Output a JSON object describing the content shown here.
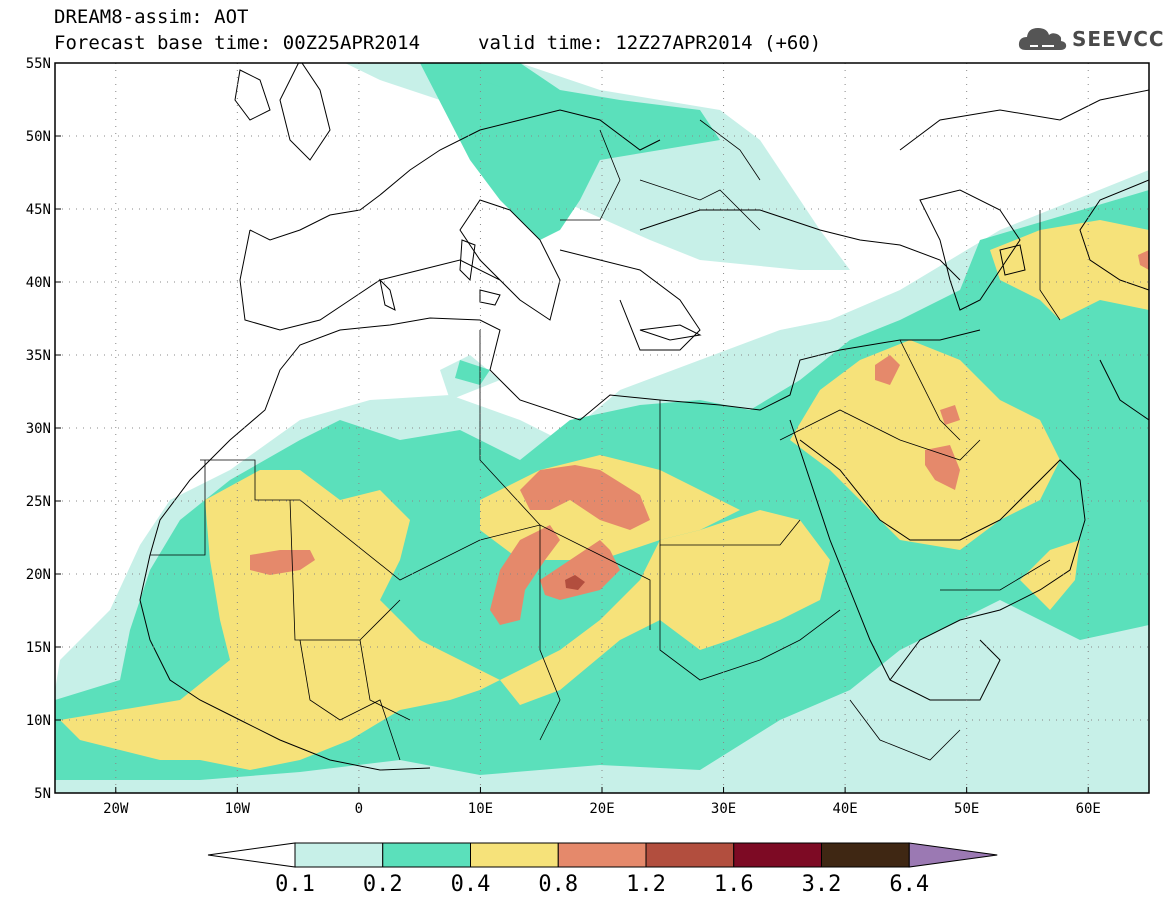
{
  "header": {
    "line1": "DREAM8-assim: AOT",
    "base_time": "Forecast base time: 00Z25APR2014",
    "valid_time": "valid time: 12Z27APR2014 (+60)"
  },
  "logo": {
    "text": "SEEVCCC",
    "icon": "cloud-icon"
  },
  "axes": {
    "lon_min": -25,
    "lon_max": 65,
    "lat_min": 5,
    "lat_max": 55,
    "x_ticks": [
      "20W",
      "10W",
      "0",
      "10E",
      "20E",
      "30E",
      "40E",
      "50E",
      "60E"
    ],
    "y_ticks": [
      "55N",
      "50N",
      "45N",
      "40N",
      "35N",
      "30N",
      "25N",
      "20N",
      "15N",
      "10N",
      "5N"
    ],
    "grid": true
  },
  "colorbar": {
    "levels": [
      "0.1",
      "0.2",
      "0.4",
      "0.8",
      "1.2",
      "1.6",
      "3.2",
      "6.4"
    ],
    "colors": [
      "#ffffff",
      "#c7f0e8",
      "#5be0bb",
      "#f6e27a",
      "#e5896b",
      "#b24e3e",
      "#7d0a24",
      "#3f2713",
      "#9b79b3"
    ]
  }
}
